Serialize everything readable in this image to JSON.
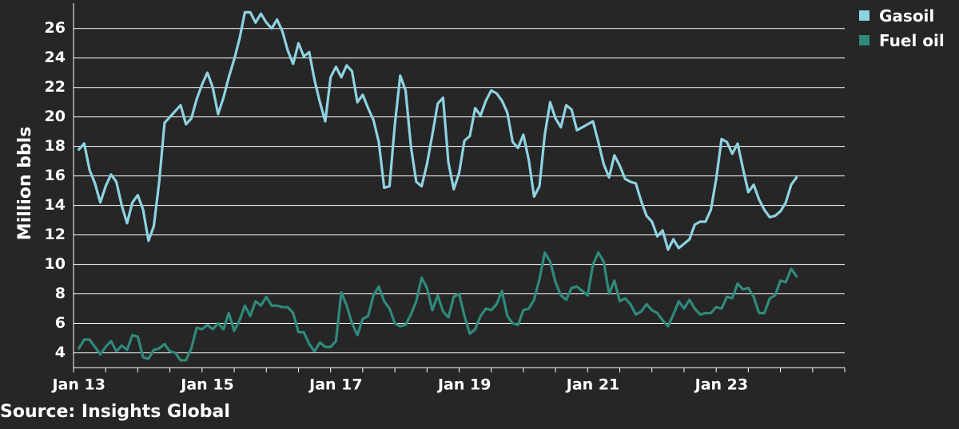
{
  "chart_data": {
    "type": "line",
    "ylabel": "Million bbls",
    "ylim": [
      3,
      27.5
    ],
    "yticks": [
      4,
      6,
      8,
      10,
      12,
      14,
      16,
      18,
      20,
      22,
      24,
      26
    ],
    "xlim": [
      "2012-12",
      "2024-12"
    ],
    "xticks": [
      {
        "label": "Jan 13",
        "date": "2013-01"
      },
      {
        "label": "Jan 15",
        "date": "2015-01"
      },
      {
        "label": "Jan 17",
        "date": "2017-01"
      },
      {
        "label": "Jan 19",
        "date": "2019-01"
      },
      {
        "label": "Jan 21",
        "date": "2021-01"
      },
      {
        "label": "Jan 23",
        "date": "2023-01"
      }
    ],
    "grid": true,
    "legend_position": "top-right",
    "series": [
      {
        "name": "Gasoil",
        "color": "#8ed3e2",
        "points": [
          [
            "2013-01",
            17.8
          ],
          [
            "2013-02",
            18.2
          ],
          [
            "2013-03",
            16.4
          ],
          [
            "2013-04",
            15.5
          ],
          [
            "2013-05",
            14.2
          ],
          [
            "2013-06",
            15.3
          ],
          [
            "2013-07",
            16.1
          ],
          [
            "2013-08",
            15.6
          ],
          [
            "2013-09",
            14.0
          ],
          [
            "2013-10",
            12.8
          ],
          [
            "2013-11",
            14.2
          ],
          [
            "2013-12",
            14.7
          ],
          [
            "2014-01",
            13.7
          ],
          [
            "2014-02",
            11.6
          ],
          [
            "2014-03",
            12.6
          ],
          [
            "2014-04",
            15.6
          ],
          [
            "2014-05",
            19.6
          ],
          [
            "2014-06",
            20.0
          ],
          [
            "2014-07",
            20.4
          ],
          [
            "2014-08",
            20.8
          ],
          [
            "2014-09",
            19.5
          ],
          [
            "2014-10",
            19.9
          ],
          [
            "2014-11",
            21.2
          ],
          [
            "2014-12",
            22.2
          ],
          [
            "2015-01",
            23.0
          ],
          [
            "2015-02",
            22.0
          ],
          [
            "2015-03",
            20.2
          ],
          [
            "2015-04",
            21.3
          ],
          [
            "2015-05",
            22.7
          ],
          [
            "2015-06",
            23.9
          ],
          [
            "2015-07",
            25.3
          ],
          [
            "2015-08",
            27.1
          ],
          [
            "2015-09",
            27.1
          ],
          [
            "2015-10",
            26.4
          ],
          [
            "2015-11",
            27.0
          ],
          [
            "2015-12",
            26.4
          ],
          [
            "2016-01",
            26.0
          ],
          [
            "2016-02",
            26.6
          ],
          [
            "2016-03",
            25.8
          ],
          [
            "2016-04",
            24.5
          ],
          [
            "2016-05",
            23.6
          ],
          [
            "2016-06",
            25.0
          ],
          [
            "2016-07",
            24.1
          ],
          [
            "2016-08",
            24.4
          ],
          [
            "2016-09",
            22.5
          ],
          [
            "2016-10",
            21.0
          ],
          [
            "2016-11",
            19.7
          ],
          [
            "2016-12",
            22.7
          ],
          [
            "2017-01",
            23.4
          ],
          [
            "2017-02",
            22.7
          ],
          [
            "2017-03",
            23.5
          ],
          [
            "2017-04",
            23.1
          ],
          [
            "2017-05",
            21.0
          ],
          [
            "2017-06",
            21.5
          ],
          [
            "2017-07",
            20.6
          ],
          [
            "2017-08",
            19.8
          ],
          [
            "2017-09",
            18.3
          ],
          [
            "2017-10",
            15.2
          ],
          [
            "2017-11",
            15.3
          ],
          [
            "2017-12",
            19.5
          ],
          [
            "2018-01",
            22.8
          ],
          [
            "2018-02",
            21.8
          ],
          [
            "2018-03",
            18.0
          ],
          [
            "2018-04",
            15.6
          ],
          [
            "2018-05",
            15.3
          ],
          [
            "2018-06",
            16.8
          ],
          [
            "2018-07",
            18.8
          ],
          [
            "2018-08",
            20.9
          ],
          [
            "2018-09",
            21.3
          ],
          [
            "2018-10",
            16.9
          ],
          [
            "2018-11",
            15.1
          ],
          [
            "2018-12",
            16.2
          ],
          [
            "2019-01",
            18.4
          ],
          [
            "2019-02",
            18.7
          ],
          [
            "2019-03",
            20.6
          ],
          [
            "2019-04",
            20.1
          ],
          [
            "2019-05",
            21.1
          ],
          [
            "2019-06",
            21.8
          ],
          [
            "2019-07",
            21.6
          ],
          [
            "2019-08",
            21.1
          ],
          [
            "2019-09",
            20.3
          ],
          [
            "2019-10",
            18.3
          ],
          [
            "2019-11",
            17.9
          ],
          [
            "2019-12",
            18.8
          ],
          [
            "2020-01",
            17.1
          ],
          [
            "2020-02",
            14.6
          ],
          [
            "2020-03",
            15.3
          ],
          [
            "2020-04",
            18.8
          ],
          [
            "2020-05",
            21.0
          ],
          [
            "2020-06",
            19.9
          ],
          [
            "2020-07",
            19.3
          ],
          [
            "2020-08",
            20.8
          ],
          [
            "2020-09",
            20.5
          ],
          [
            "2020-10",
            19.1
          ],
          [
            "2020-11",
            19.3
          ],
          [
            "2020-12",
            19.5
          ],
          [
            "2021-01",
            19.7
          ],
          [
            "2021-02",
            18.3
          ],
          [
            "2021-03",
            16.8
          ],
          [
            "2021-04",
            15.9
          ],
          [
            "2021-05",
            17.4
          ],
          [
            "2021-06",
            16.7
          ],
          [
            "2021-07",
            15.8
          ],
          [
            "2021-08",
            15.6
          ],
          [
            "2021-09",
            15.5
          ],
          [
            "2021-10",
            14.3
          ],
          [
            "2021-11",
            13.3
          ],
          [
            "2021-12",
            12.9
          ],
          [
            "2022-01",
            11.9
          ],
          [
            "2022-02",
            12.3
          ],
          [
            "2022-03",
            11.0
          ],
          [
            "2022-04",
            11.7
          ],
          [
            "2022-05",
            11.1
          ],
          [
            "2022-06",
            11.4
          ],
          [
            "2022-07",
            11.7
          ],
          [
            "2022-08",
            12.7
          ],
          [
            "2022-09",
            12.9
          ],
          [
            "2022-10",
            12.9
          ],
          [
            "2022-11",
            13.7
          ],
          [
            "2022-12",
            15.8
          ],
          [
            "2023-01",
            18.5
          ],
          [
            "2023-02",
            18.3
          ],
          [
            "2023-03",
            17.5
          ],
          [
            "2023-04",
            18.2
          ],
          [
            "2023-05",
            16.5
          ],
          [
            "2023-06",
            14.9
          ],
          [
            "2023-07",
            15.4
          ],
          [
            "2023-08",
            14.4
          ],
          [
            "2023-09",
            13.7
          ],
          [
            "2023-10",
            13.2
          ],
          [
            "2023-11",
            13.3
          ],
          [
            "2023-12",
            13.6
          ],
          [
            "2024-01",
            14.2
          ],
          [
            "2024-02",
            15.4
          ],
          [
            "2024-03",
            15.9
          ]
        ]
      },
      {
        "name": "Fuel oil",
        "color": "#2f8a7c",
        "points": [
          [
            "2013-01",
            4.3
          ],
          [
            "2013-02",
            4.9
          ],
          [
            "2013-03",
            4.9
          ],
          [
            "2013-04",
            4.4
          ],
          [
            "2013-05",
            3.9
          ],
          [
            "2013-06",
            4.4
          ],
          [
            "2013-07",
            4.8
          ],
          [
            "2013-08",
            4.1
          ],
          [
            "2013-09",
            4.5
          ],
          [
            "2013-10",
            4.2
          ],
          [
            "2013-11",
            5.2
          ],
          [
            "2013-12",
            5.1
          ],
          [
            "2014-01",
            3.7
          ],
          [
            "2014-02",
            3.6
          ],
          [
            "2014-03",
            4.2
          ],
          [
            "2014-04",
            4.3
          ],
          [
            "2014-05",
            4.6
          ],
          [
            "2014-06",
            4.1
          ],
          [
            "2014-07",
            4.0
          ],
          [
            "2014-08",
            3.5
          ],
          [
            "2014-09",
            3.5
          ],
          [
            "2014-10",
            4.3
          ],
          [
            "2014-11",
            5.7
          ],
          [
            "2014-12",
            5.6
          ],
          [
            "2015-01",
            5.9
          ],
          [
            "2015-02",
            5.6
          ],
          [
            "2015-03",
            6.0
          ],
          [
            "2015-04",
            5.6
          ],
          [
            "2015-05",
            6.7
          ],
          [
            "2015-06",
            5.5
          ],
          [
            "2015-07",
            6.2
          ],
          [
            "2015-08",
            7.2
          ],
          [
            "2015-09",
            6.5
          ],
          [
            "2015-10",
            7.5
          ],
          [
            "2015-11",
            7.2
          ],
          [
            "2015-12",
            7.8
          ],
          [
            "2016-01",
            7.2
          ],
          [
            "2016-02",
            7.2
          ],
          [
            "2016-03",
            7.1
          ],
          [
            "2016-04",
            7.1
          ],
          [
            "2016-05",
            6.7
          ],
          [
            "2016-06",
            5.4
          ],
          [
            "2016-07",
            5.4
          ],
          [
            "2016-08",
            4.6
          ],
          [
            "2016-09",
            4.1
          ],
          [
            "2016-10",
            4.7
          ],
          [
            "2016-11",
            4.4
          ],
          [
            "2016-12",
            4.4
          ],
          [
            "2017-01",
            4.8
          ],
          [
            "2017-02",
            8.1
          ],
          [
            "2017-03",
            7.2
          ],
          [
            "2017-04",
            6.0
          ],
          [
            "2017-05",
            5.2
          ],
          [
            "2017-06",
            6.3
          ],
          [
            "2017-07",
            6.5
          ],
          [
            "2017-08",
            7.9
          ],
          [
            "2017-09",
            8.5
          ],
          [
            "2017-10",
            7.5
          ],
          [
            "2017-11",
            7.0
          ],
          [
            "2017-12",
            6.0
          ],
          [
            "2018-01",
            5.8
          ],
          [
            "2018-02",
            5.9
          ],
          [
            "2018-03",
            6.6
          ],
          [
            "2018-04",
            7.5
          ],
          [
            "2018-05",
            9.1
          ],
          [
            "2018-06",
            8.4
          ],
          [
            "2018-07",
            6.9
          ],
          [
            "2018-08",
            7.9
          ],
          [
            "2018-09",
            6.8
          ],
          [
            "2018-10",
            6.4
          ],
          [
            "2018-11",
            7.8
          ],
          [
            "2018-12",
            8.0
          ],
          [
            "2019-01",
            6.5
          ],
          [
            "2019-02",
            5.3
          ],
          [
            "2019-03",
            5.6
          ],
          [
            "2019-04",
            6.5
          ],
          [
            "2019-05",
            7.0
          ],
          [
            "2019-06",
            6.9
          ],
          [
            "2019-07",
            7.3
          ],
          [
            "2019-08",
            8.2
          ],
          [
            "2019-09",
            6.5
          ],
          [
            "2019-10",
            6.0
          ],
          [
            "2019-11",
            5.9
          ],
          [
            "2019-12",
            6.9
          ],
          [
            "2020-01",
            7.0
          ],
          [
            "2020-02",
            7.6
          ],
          [
            "2020-03",
            9.0
          ],
          [
            "2020-04",
            10.8
          ],
          [
            "2020-05",
            10.2
          ],
          [
            "2020-06",
            8.8
          ],
          [
            "2020-07",
            7.9
          ],
          [
            "2020-08",
            7.6
          ],
          [
            "2020-09",
            8.4
          ],
          [
            "2020-10",
            8.5
          ],
          [
            "2020-11",
            8.2
          ],
          [
            "2020-12",
            7.9
          ],
          [
            "2021-01",
            10.0
          ],
          [
            "2021-02",
            10.8
          ],
          [
            "2021-03",
            10.2
          ],
          [
            "2021-04",
            8.0
          ],
          [
            "2021-05",
            8.9
          ],
          [
            "2021-06",
            7.5
          ],
          [
            "2021-07",
            7.7
          ],
          [
            "2021-08",
            7.3
          ],
          [
            "2021-09",
            6.6
          ],
          [
            "2021-10",
            6.8
          ],
          [
            "2021-11",
            7.3
          ],
          [
            "2021-12",
            6.9
          ],
          [
            "2022-01",
            6.7
          ],
          [
            "2022-02",
            6.2
          ],
          [
            "2022-03",
            5.8
          ],
          [
            "2022-04",
            6.6
          ],
          [
            "2022-05",
            7.5
          ],
          [
            "2022-06",
            7.0
          ],
          [
            "2022-07",
            7.6
          ],
          [
            "2022-08",
            7.0
          ],
          [
            "2022-09",
            6.6
          ],
          [
            "2022-10",
            6.7
          ],
          [
            "2022-11",
            6.7
          ],
          [
            "2022-12",
            7.1
          ],
          [
            "2023-01",
            7.0
          ],
          [
            "2023-02",
            7.8
          ],
          [
            "2023-03",
            7.7
          ],
          [
            "2023-04",
            8.7
          ],
          [
            "2023-05",
            8.3
          ],
          [
            "2023-06",
            8.4
          ],
          [
            "2023-07",
            7.8
          ],
          [
            "2023-08",
            6.7
          ],
          [
            "2023-09",
            6.7
          ],
          [
            "2023-10",
            7.7
          ],
          [
            "2023-11",
            7.9
          ],
          [
            "2023-12",
            8.9
          ],
          [
            "2024-01",
            8.8
          ],
          [
            "2024-02",
            9.7
          ],
          [
            "2024-03",
            9.2
          ]
        ]
      }
    ]
  },
  "source": "Source: Insights Global"
}
